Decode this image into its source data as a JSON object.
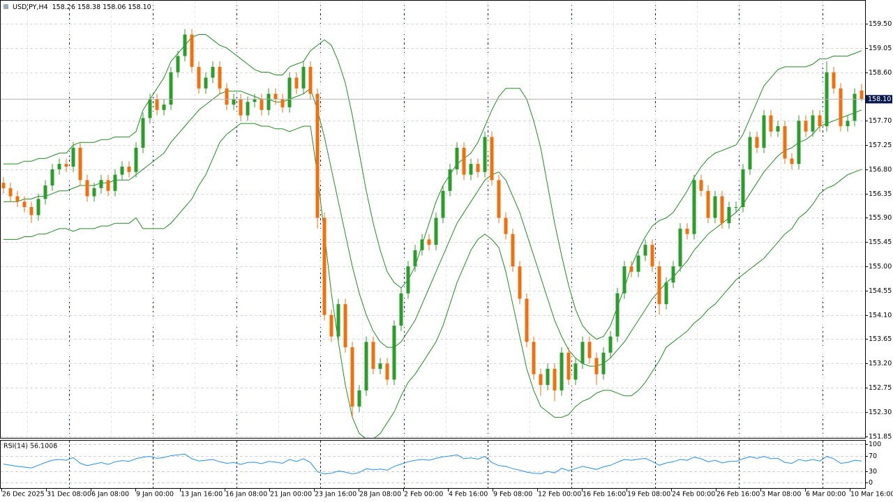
{
  "chart_data": [
    {
      "type": "candlestick",
      "title": "USDJPY,H4",
      "ohlc_text": "158.26 158.38 158.06 158.10",
      "up_color": "#2a9d2a",
      "down_color": "#f0700e",
      "ylim": [
        151.82,
        159.94
      ],
      "yticks": [
        {
          "value": 159.5,
          "label": "159.50"
        },
        {
          "value": 159.05,
          "label": "159.05"
        },
        {
          "value": 158.6,
          "label": "158.60"
        },
        {
          "value": 157.7,
          "label": "157.70"
        },
        {
          "value": 157.25,
          "label": "157.25"
        },
        {
          "value": 156.8,
          "label": "156.80"
        },
        {
          "value": 156.35,
          "label": "156.35"
        },
        {
          "value": 155.9,
          "label": "155.90"
        },
        {
          "value": 155.45,
          "label": "155.45"
        },
        {
          "value": 155,
          "label": "155.00"
        },
        {
          "value": 154.55,
          "label": "154.55"
        },
        {
          "value": 154.1,
          "label": "154.10"
        },
        {
          "value": 153.65,
          "label": "153.65"
        },
        {
          "value": 153.2,
          "label": "153.20"
        },
        {
          "value": 152.75,
          "label": "152.75"
        },
        {
          "value": 152.3,
          "label": "152.30"
        },
        {
          "value": 151.85,
          "label": "151.85"
        }
      ],
      "grid": true,
      "last_price": {
        "value": 158.1,
        "label": "158.10"
      },
      "x_labels": [
        "26 Dec 2025",
        "31 Dec 08:00",
        "6 Jan 08:00",
        "9 Jan 00:00",
        "13 Jan 16:00",
        "16 Jan 08:00",
        "21 Jan 00:00",
        "23 Jan 16:00",
        "28 Jan 08:00",
        "2 Feb 00:00",
        "4 Feb 16:00",
        "9 Feb 08:00",
        "12 Feb 00:00",
        "16 Feb 16:00",
        "19 Feb 08:00",
        "24 Feb 00:00",
        "26 Feb 16:00",
        "3 Mar 08:00",
        "6 Mar 00:00",
        "10 Mar 16:00"
      ],
      "open": [
        156.55,
        156.45,
        156.3,
        156.2,
        156.1,
        155.95,
        156.25,
        156.5,
        156.8,
        156.9,
        156.85,
        157.2,
        156.6,
        156.3,
        156.45,
        156.6,
        156.4,
        156.7,
        156.85,
        156.75,
        157.2,
        157.75,
        158.1,
        157.9,
        158,
        158.6,
        158.9,
        159.3,
        158.7,
        158.3,
        158.5,
        158.7,
        158.3,
        158,
        158.1,
        157.8,
        158.05,
        158.1,
        157.9,
        158.2,
        158.1,
        157.95,
        158.5,
        158.3,
        158.7,
        158.2,
        155.9,
        154.1,
        153.7,
        154.3,
        153.5,
        152.4,
        152.7,
        153.6,
        153.1,
        153.2,
        152.9,
        153.9,
        154.5,
        155,
        155.3,
        155.5,
        155.4,
        155.9,
        156.4,
        156.8,
        157.2,
        156.7,
        156.9,
        156.75,
        157.4,
        156.6,
        155.9,
        155.6,
        155,
        154.4,
        153.6,
        153,
        152.8,
        153.1,
        152.7,
        153.4,
        152.9,
        153.2,
        153.6,
        153.3,
        153,
        153.4,
        153.7,
        154.5,
        155,
        154.9,
        155.2,
        155.4,
        155,
        154.3,
        154.7,
        155,
        155.7,
        155.6,
        156.6,
        156.4,
        155.9,
        156.3,
        155.8,
        156.1,
        156.1,
        156.8,
        157.4,
        157.2,
        157.8,
        157.5,
        157.6,
        157,
        156.9,
        157.7,
        157.5,
        157.8,
        157.6,
        158.6,
        158.3,
        157.6,
        157.7,
        158.26
      ],
      "high": [
        156.65,
        156.55,
        156.4,
        156.3,
        156.2,
        156.35,
        156.6,
        156.9,
        157,
        157,
        157.3,
        157.3,
        156.7,
        156.55,
        156.7,
        156.7,
        156.8,
        156.95,
        156.95,
        157.3,
        157.85,
        158.2,
        158.2,
        158.1,
        158.7,
        159,
        159.4,
        159.4,
        158.8,
        158.6,
        158.8,
        158.8,
        158.4,
        158.2,
        158.2,
        158.15,
        158.2,
        158.2,
        158.3,
        158.3,
        158.2,
        158.6,
        158.6,
        158.8,
        158.8,
        158.3,
        156,
        154.2,
        154.4,
        154.4,
        153.6,
        152.8,
        153.7,
        153.7,
        153.3,
        153.3,
        154,
        154.6,
        155.1,
        155.4,
        155.6,
        155.6,
        156,
        156.5,
        156.9,
        157.3,
        157.3,
        157,
        157,
        157.5,
        157.5,
        156.7,
        156,
        155.7,
        155.1,
        154.5,
        153.7,
        153.1,
        153.2,
        153.2,
        153.5,
        153.5,
        153.3,
        153.7,
        153.7,
        153.4,
        153.5,
        153.8,
        154.6,
        155.1,
        155.1,
        155.3,
        155.5,
        155.5,
        155.1,
        154.8,
        155.1,
        155.8,
        155.8,
        156.7,
        156.7,
        156.5,
        156.4,
        156.4,
        156.2,
        156.2,
        156.9,
        157.5,
        157.5,
        157.9,
        157.9,
        157.7,
        157.7,
        157.1,
        157.8,
        157.8,
        157.9,
        157.9,
        158.8,
        158.7,
        158.4,
        157.8,
        158.3,
        158.38
      ],
      "low": [
        156.35,
        156.2,
        156.1,
        156,
        155.8,
        155.85,
        156.15,
        156.4,
        156.7,
        156.75,
        156.75,
        156.5,
        156.2,
        156.2,
        156.35,
        156.3,
        156.3,
        156.6,
        156.65,
        156.65,
        157.1,
        157.65,
        157.8,
        157.8,
        157.9,
        158.5,
        158.8,
        158.6,
        158.2,
        158.2,
        158.4,
        158.2,
        157.9,
        157.9,
        157.7,
        157.7,
        157.95,
        157.8,
        157.8,
        158,
        157.85,
        157.85,
        158.2,
        158.2,
        158.1,
        155.7,
        154,
        153.6,
        153.6,
        153.4,
        152.2,
        152.3,
        152.6,
        153,
        153,
        152.8,
        152.8,
        153.8,
        154.4,
        154.9,
        155.2,
        155.3,
        155.3,
        155.8,
        156.3,
        156.7,
        156.6,
        156.6,
        156.65,
        156.65,
        156.5,
        155.8,
        155.5,
        154.9,
        154.3,
        153.5,
        152.9,
        152.6,
        152.7,
        152.5,
        152.6,
        152.8,
        152.8,
        153.1,
        153.2,
        152.8,
        152.9,
        153.3,
        153.6,
        154.4,
        154.8,
        154.8,
        155.1,
        154.9,
        154.1,
        154.2,
        154.6,
        154.9,
        155.5,
        155.5,
        156.3,
        155.8,
        155.8,
        155.7,
        155.7,
        156,
        156,
        156.7,
        157.1,
        157.1,
        157.4,
        157.4,
        156.9,
        156.8,
        156.8,
        157.4,
        157.4,
        157.5,
        157.5,
        158.2,
        157.5,
        157.5,
        157.6,
        158.06
      ],
      "close": [
        156.45,
        156.3,
        156.2,
        156.1,
        155.95,
        156.25,
        156.5,
        156.8,
        156.9,
        156.85,
        157.2,
        156.6,
        156.3,
        156.45,
        156.6,
        156.4,
        156.7,
        156.85,
        156.75,
        157.2,
        157.75,
        158.1,
        157.9,
        158,
        158.6,
        158.9,
        159.3,
        158.7,
        158.3,
        158.5,
        158.7,
        158.3,
        158,
        158.1,
        157.8,
        158.05,
        158.1,
        157.9,
        158.2,
        158.1,
        157.95,
        158.5,
        158.3,
        158.7,
        158.2,
        155.9,
        154.1,
        153.7,
        154.3,
        153.5,
        152.4,
        152.7,
        153.6,
        153.1,
        153.2,
        152.9,
        153.9,
        154.5,
        155,
        155.3,
        155.5,
        155.4,
        155.9,
        156.4,
        156.8,
        157.2,
        156.7,
        156.9,
        156.75,
        157.4,
        156.6,
        155.9,
        155.6,
        155,
        154.4,
        153.6,
        153,
        152.8,
        153.1,
        152.7,
        153.4,
        152.9,
        153.2,
        153.6,
        153.3,
        153,
        153.4,
        153.7,
        154.5,
        155,
        154.9,
        155.2,
        155.4,
        155,
        154.3,
        154.7,
        155,
        155.7,
        155.6,
        156.6,
        156.4,
        155.9,
        156.3,
        155.8,
        156.1,
        156.1,
        156.8,
        157.4,
        157.2,
        157.8,
        157.5,
        157.6,
        157,
        156.9,
        157.7,
        157.5,
        157.8,
        157.6,
        158.6,
        158.3,
        157.6,
        157.7,
        158.2,
        158.1
      ],
      "bands": {
        "color": "#1f8f1f",
        "upper": [
          156.9,
          156.9,
          156.9,
          156.95,
          156.95,
          157,
          157,
          157.05,
          157.1,
          157.1,
          157.25,
          157.3,
          157.3,
          157.3,
          157.35,
          157.35,
          157.4,
          157.4,
          157.4,
          157.5,
          157.9,
          158.1,
          158.3,
          158.5,
          158.8,
          158.95,
          159.1,
          159.25,
          159.3,
          159.3,
          159.2,
          159.1,
          159.05,
          158.95,
          158.85,
          158.75,
          158.65,
          158.6,
          158.6,
          158.55,
          158.55,
          158.7,
          158.75,
          158.8,
          159,
          159.1,
          159.2,
          159.1,
          158.8,
          158.4,
          157.8,
          157.1,
          156.4,
          155.8,
          155.3,
          154.9,
          154.7,
          154.6,
          154.75,
          155,
          155.4,
          155.8,
          156.2,
          156.5,
          156.7,
          156.9,
          157,
          157.1,
          157.3,
          157.6,
          157.9,
          158.15,
          158.3,
          158.3,
          158.3,
          158.1,
          157.7,
          157.2,
          156.5,
          155.8,
          155.2,
          154.65,
          154.2,
          153.9,
          153.75,
          153.65,
          153.7,
          153.9,
          154.25,
          154.6,
          155,
          155.3,
          155.55,
          155.75,
          155.85,
          155.9,
          156,
          156.2,
          156.4,
          156.65,
          156.85,
          157,
          157.1,
          157.15,
          157.2,
          157.25,
          157.45,
          157.75,
          158.05,
          158.35,
          158.5,
          158.65,
          158.7,
          158.7,
          158.7,
          158.7,
          158.75,
          158.85,
          158.85,
          158.9,
          158.9,
          158.9,
          158.95,
          159
        ],
        "middle": [
          156.2,
          156.2,
          156.2,
          156.25,
          156.25,
          156.3,
          156.3,
          156.35,
          156.4,
          156.4,
          156.45,
          156.5,
          156.5,
          156.5,
          156.55,
          156.55,
          156.6,
          156.6,
          156.6,
          156.7,
          156.8,
          156.9,
          157,
          157.1,
          157.3,
          157.45,
          157.6,
          157.75,
          157.9,
          158,
          158.1,
          158.2,
          158.25,
          158.25,
          158.25,
          158.2,
          158.15,
          158.1,
          158.1,
          158.05,
          158.05,
          158.1,
          158.15,
          158.2,
          158.3,
          157.9,
          157.4,
          156.8,
          156.2,
          155.6,
          155,
          154.5,
          154.1,
          153.8,
          153.6,
          153.5,
          153.5,
          153.6,
          153.8,
          154,
          154.3,
          154.6,
          154.9,
          155.2,
          155.5,
          155.8,
          156,
          156.2,
          156.4,
          156.6,
          156.7,
          156.75,
          156.6,
          156.3,
          156,
          155.6,
          155.2,
          154.8,
          154.4,
          154,
          153.7,
          153.45,
          153.3,
          153.2,
          153.15,
          153.15,
          153.2,
          153.3,
          153.45,
          153.6,
          153.8,
          154,
          154.2,
          154.4,
          154.55,
          154.7,
          154.8,
          154.95,
          155.1,
          155.3,
          155.45,
          155.6,
          155.7,
          155.8,
          155.9,
          156,
          156.15,
          156.35,
          156.55,
          156.75,
          156.9,
          157.05,
          157.15,
          157.2,
          157.3,
          157.35,
          157.45,
          157.6,
          157.65,
          157.7,
          157.75,
          157.8,
          157.85,
          157.9
        ],
        "lower": [
          155.5,
          155.5,
          155.5,
          155.55,
          155.55,
          155.6,
          155.6,
          155.65,
          155.7,
          155.7,
          155.65,
          155.7,
          155.7,
          155.7,
          155.75,
          155.75,
          155.8,
          155.8,
          155.8,
          155.9,
          155.7,
          155.7,
          155.7,
          155.7,
          155.8,
          155.95,
          156.1,
          156.25,
          156.5,
          156.7,
          157,
          157.3,
          157.45,
          157.55,
          157.65,
          157.65,
          157.65,
          157.6,
          157.6,
          157.55,
          157.55,
          157.5,
          157.55,
          157.6,
          157.6,
          156.7,
          155.6,
          154.5,
          153.6,
          152.8,
          152.2,
          151.9,
          151.8,
          151.8,
          151.9,
          152.1,
          152.3,
          152.6,
          152.85,
          153,
          153.2,
          153.4,
          153.6,
          153.9,
          154.3,
          154.7,
          155,
          155.3,
          155.5,
          155.6,
          155.5,
          155.35,
          154.9,
          154.3,
          153.7,
          153.1,
          152.7,
          152.4,
          152.3,
          152.2,
          152.2,
          152.25,
          152.4,
          152.5,
          152.55,
          152.65,
          152.7,
          152.7,
          152.65,
          152.6,
          152.6,
          152.7,
          152.85,
          153.05,
          153.25,
          153.5,
          153.6,
          153.7,
          153.8,
          153.95,
          154.05,
          154.2,
          154.3,
          154.45,
          154.6,
          154.75,
          154.85,
          154.95,
          155.05,
          155.15,
          155.3,
          155.45,
          155.6,
          155.7,
          155.9,
          156,
          156.15,
          156.35,
          156.45,
          156.5,
          156.6,
          156.7,
          156.75,
          156.8
        ]
      }
    },
    {
      "type": "line",
      "title": "RSI(14) 56.1008",
      "color": "#1e90ff",
      "ylim": [
        0,
        100
      ],
      "yticks": [
        100,
        70,
        30,
        0
      ],
      "values": [
        48,
        45,
        42,
        40,
        38,
        45,
        52,
        58,
        60,
        58,
        65,
        50,
        44,
        48,
        52,
        47,
        54,
        57,
        55,
        62,
        66,
        68,
        63,
        65,
        70,
        72,
        74,
        62,
        56,
        58,
        60,
        54,
        50,
        52,
        47,
        52,
        53,
        49,
        55,
        53,
        50,
        60,
        55,
        62,
        52,
        28,
        22,
        24,
        30,
        27,
        22,
        26,
        36,
        33,
        35,
        32,
        42,
        48,
        54,
        58,
        60,
        58,
        63,
        67,
        69,
        72,
        62,
        64,
        61,
        68,
        52,
        44,
        42,
        36,
        32,
        27,
        24,
        23,
        29,
        25,
        37,
        31,
        36,
        42,
        38,
        34,
        41,
        45,
        53,
        60,
        58,
        61,
        63,
        55,
        45,
        51,
        54,
        60,
        58,
        66,
        62,
        54,
        58,
        51,
        55,
        55,
        62,
        67,
        63,
        68,
        62,
        63,
        52,
        50,
        60,
        56,
        60,
        56,
        68,
        62,
        50,
        52,
        58,
        56
      ]
    }
  ]
}
